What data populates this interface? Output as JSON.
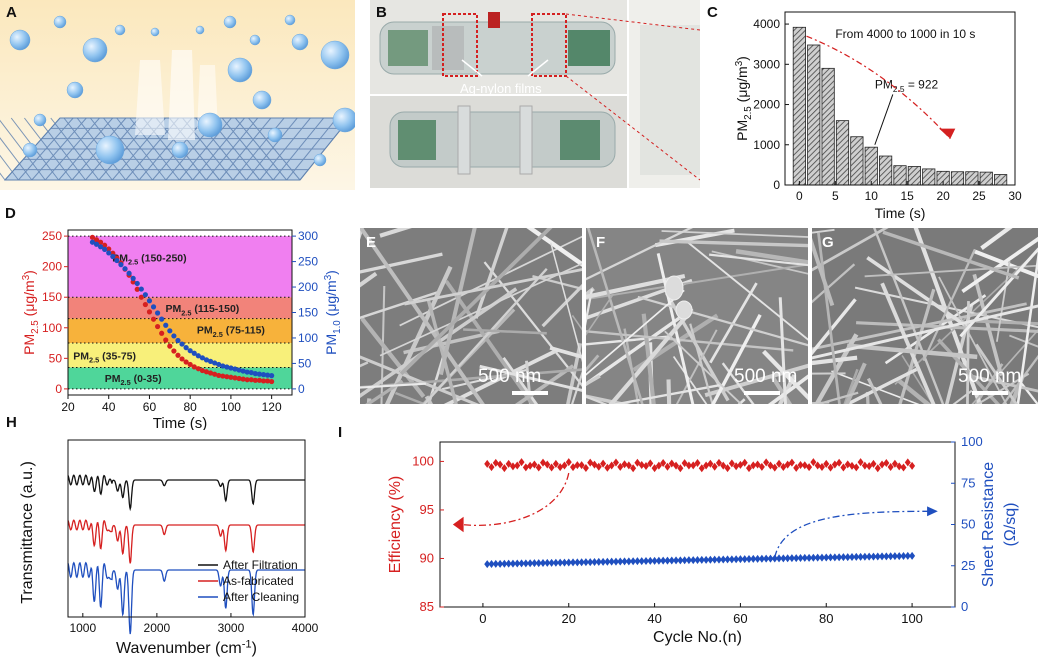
{
  "panels": {
    "A": {
      "label": "A"
    },
    "B": {
      "label": "B",
      "annotation": "Ag-nylon films"
    },
    "C": {
      "label": "C"
    },
    "D": {
      "label": "D"
    },
    "E": {
      "label": "E",
      "scale": "500 nm"
    },
    "F": {
      "label": "F",
      "scale": "500 nm"
    },
    "G": {
      "label": "G",
      "scale": "500 nm"
    },
    "H": {
      "label": "H"
    },
    "I": {
      "label": "I"
    }
  },
  "colors": {
    "red": "#d62020",
    "blue": "#1f4fbf",
    "black": "#111111",
    "magenta": "#f07ff0",
    "salmon": "#f2837a",
    "orange": "#f7b23b",
    "yellow": "#f8f07a",
    "green": "#4fd69a"
  },
  "chart_data": [
    {
      "id": "C",
      "type": "bar",
      "x": [
        0,
        2,
        4,
        6,
        8,
        10,
        12,
        14,
        16,
        18,
        20,
        22,
        24,
        26,
        28
      ],
      "values": [
        3920,
        3480,
        2900,
        1600,
        1200,
        940,
        720,
        480,
        460,
        400,
        340,
        330,
        330,
        320,
        260
      ],
      "xlabel": "Time (s)",
      "ylabel_main": "PM",
      "ylabel_sub": "2.5",
      "ylabel_unit": "(μg/m",
      "ylabel_sup": "3",
      "ylabel_end": ")",
      "xlim": [
        -2,
        30
      ],
      "ylim": [
        0,
        4300
      ],
      "xticks": [
        0,
        5,
        10,
        15,
        20,
        25,
        30
      ],
      "yticks": [
        0,
        1000,
        2000,
        3000,
        4000
      ],
      "annotations": [
        {
          "text": "From 4000 to 1000 in 10 s"
        },
        {
          "text_main": "PM",
          "text_sub": "2.5",
          "text_end": " = 922"
        }
      ]
    },
    {
      "id": "D",
      "type": "scatter",
      "xlabel": "Time (s)",
      "ylabel_left": {
        "main": "PM",
        "sub": "2.5",
        "unit": "(μg/m",
        "sup": "3",
        "end": ")"
      },
      "ylabel_right": {
        "main": "PM",
        "sub": "1.0",
        "unit": "(μg/m",
        "sup": "3",
        "end": ")"
      },
      "xlim": [
        20,
        130
      ],
      "ylim_left": [
        -10,
        260
      ],
      "ylim_right": [
        -12,
        312
      ],
      "xticks": [
        20,
        40,
        60,
        80,
        100,
        120
      ],
      "yticks_left": [
        0,
        50,
        100,
        150,
        200,
        250
      ],
      "yticks_right": [
        0,
        50,
        100,
        150,
        200,
        250,
        300
      ],
      "bands": [
        {
          "from": 150,
          "to": 250,
          "color": "#f07ff0",
          "label_main": "PM",
          "label_sub": "2.5",
          "label_end": " (150-250)"
        },
        {
          "from": 115,
          "to": 150,
          "color": "#f2837a",
          "label_main": "PM",
          "label_sub": "2.5",
          "label_end": " (115-150)"
        },
        {
          "from": 75,
          "to": 115,
          "color": "#f7b23b",
          "label_main": "PM",
          "label_sub": "2.5",
          "label_end": " (75-115)"
        },
        {
          "from": 35,
          "to": 75,
          "color": "#f8f07a",
          "label_main": "PM",
          "label_sub": "2.5",
          "label_end": " (35-75)"
        },
        {
          "from": 0,
          "to": 35,
          "color": "#4fd69a",
          "label_main": "PM",
          "label_sub": "2.5",
          "label_end": " (0-35)"
        }
      ],
      "series": [
        {
          "axis": "left",
          "color": "#d62020",
          "x": [
            32,
            34,
            36,
            38,
            40,
            42,
            44,
            46,
            48,
            50,
            52,
            54,
            56,
            58,
            60,
            62,
            64,
            66,
            68,
            70,
            72,
            74,
            76,
            78,
            80,
            82,
            84,
            86,
            88,
            90,
            92,
            94,
            96,
            98,
            100,
            102,
            104,
            106,
            108,
            110,
            112,
            114,
            116,
            118,
            120
          ],
          "values": [
            248,
            244,
            240,
            235,
            229,
            222,
            214,
            206,
            196,
            186,
            175,
            163,
            150,
            138,
            126,
            114,
            102,
            91,
            80,
            70,
            62,
            55,
            49,
            44,
            40,
            36,
            33,
            30,
            28,
            26,
            24,
            22,
            21,
            20,
            19,
            18,
            17,
            16,
            15,
            15,
            14,
            14,
            13,
            13,
            12
          ]
        },
        {
          "axis": "right",
          "color": "#1f4fbf",
          "x": [
            32,
            34,
            36,
            38,
            40,
            42,
            44,
            46,
            48,
            50,
            52,
            54,
            56,
            58,
            60,
            62,
            64,
            66,
            68,
            70,
            72,
            74,
            76,
            78,
            80,
            82,
            84,
            86,
            88,
            90,
            92,
            94,
            96,
            98,
            100,
            102,
            104,
            106,
            108,
            110,
            112,
            114,
            116,
            118,
            120
          ],
          "values": [
            288,
            284,
            279,
            274,
            267,
            260,
            252,
            244,
            236,
            227,
            217,
            207,
            196,
            185,
            173,
            161,
            149,
            137,
            125,
            114,
            104,
            95,
            88,
            81,
            75,
            70,
            65,
            61,
            57,
            54,
            51,
            48,
            45,
            43,
            41,
            39,
            37,
            35,
            33,
            32,
            30,
            29,
            28,
            27,
            26
          ]
        }
      ]
    },
    {
      "id": "H",
      "type": "line",
      "xlabel": "Wavenumber (cm",
      "xlabel_sup": "-1",
      "xlabel_end": ")",
      "ylabel": "Transmittance (a.u.)",
      "xlim": [
        800,
        4000
      ],
      "xticks": [
        1000,
        2000,
        3000,
        4000
      ],
      "series": [
        {
          "name": "After Filtration",
          "color": "#111111",
          "offset": 2,
          "peaks": [
            [
              1150,
              0.25
            ],
            [
              1240,
              0.3
            ],
            [
              1370,
              0.12
            ],
            [
              1470,
              0.35
            ],
            [
              1540,
              0.55
            ],
            [
              1640,
              0.9
            ],
            [
              2100,
              0.18
            ],
            [
              2860,
              0.2
            ],
            [
              2930,
              0.65
            ],
            [
              3300,
              0.75
            ]
          ]
        },
        {
          "name": "As-fabricated",
          "color": "#d62020",
          "offset": 1,
          "peaks": [
            [
              1150,
              0.55
            ],
            [
              1240,
              0.6
            ],
            [
              1370,
              0.35
            ],
            [
              1470,
              0.5
            ],
            [
              1540,
              0.9
            ],
            [
              1640,
              1.2
            ],
            [
              2100,
              0.3
            ],
            [
              2860,
              0.35
            ],
            [
              2930,
              0.8
            ],
            [
              3300,
              0.85
            ]
          ]
        },
        {
          "name": "After Cleaning",
          "color": "#1f4fbf",
          "offset": 0,
          "peaks": [
            [
              1150,
              0.85
            ],
            [
              1240,
              0.95
            ],
            [
              1370,
              0.5
            ],
            [
              1470,
              0.6
            ],
            [
              1540,
              1.4
            ],
            [
              1640,
              2.0
            ],
            [
              2100,
              0.35
            ],
            [
              2860,
              0.5
            ],
            [
              2930,
              1.2
            ],
            [
              3300,
              1.4
            ]
          ]
        }
      ]
    },
    {
      "id": "I",
      "type": "line",
      "xlabel": "Cycle No.(n)",
      "ylabel_left": "Efficiency (%)",
      "ylabel_right": "Sheet Resistance",
      "ylabel_right_unit": "(Ω/sq)",
      "xlim": [
        -10,
        110
      ],
      "ylim_left": [
        85,
        102
      ],
      "ylim_right": [
        0,
        100
      ],
      "xticks": [
        0,
        20,
        40,
        60,
        80,
        100
      ],
      "yticks_left": [
        85,
        90,
        95,
        100
      ],
      "yticks_right": [
        0,
        25,
        50,
        75,
        100
      ],
      "series": [
        {
          "name": "Efficiency",
          "axis": "left",
          "color": "#d62020",
          "x_start": 1,
          "x_end": 100,
          "base": 99.6,
          "amp": 0.25
        },
        {
          "name": "Sheet Resistance",
          "axis": "right",
          "color": "#1f4fbf",
          "x_start": 1,
          "x_end": 100,
          "start": 26,
          "end": 31
        }
      ]
    }
  ]
}
